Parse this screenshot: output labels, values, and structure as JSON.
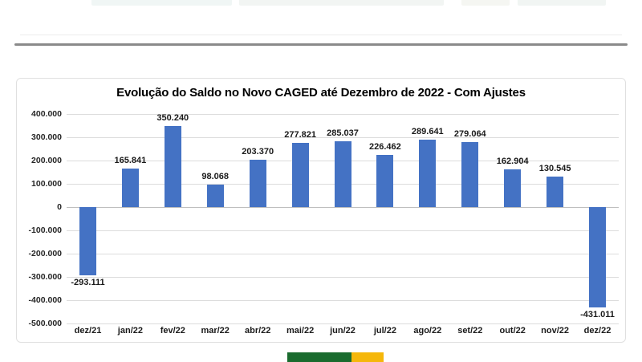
{
  "chart_data": {
    "type": "bar",
    "title": "Evolução do Saldo no Novo CAGED até Dezembro de 2022 - Com Ajustes",
    "categories": [
      "dez/21",
      "jan/22",
      "fev/22",
      "mar/22",
      "abr/22",
      "mai/22",
      "jun/22",
      "jul/22",
      "ago/22",
      "set/22",
      "out/22",
      "nov/22",
      "dez/22"
    ],
    "values": [
      -293111,
      165841,
      350240,
      98068,
      203370,
      277821,
      285037,
      226462,
      289641,
      279064,
      162904,
      130545,
      -431011
    ],
    "value_labels": [
      "-293.111",
      "165.841",
      "350.240",
      "98.068",
      "203.370",
      "277.821",
      "285.037",
      "226.462",
      "289.641",
      "279.064",
      "162.904",
      "130.545",
      "-431.011"
    ],
    "y_tick_labels": [
      "400.000",
      "300.000",
      "200.000",
      "100.000",
      "0",
      "-100.000",
      "-200.000",
      "-300.000",
      "-400.000",
      "-500.000"
    ],
    "y_tick_values": [
      400000,
      300000,
      200000,
      100000,
      0,
      -100000,
      -200000,
      -300000,
      -400000,
      -500000
    ],
    "ylim": [
      -500000,
      400000
    ],
    "grid": true,
    "legend": "none",
    "bar_color": "#4472C4",
    "xlabel": "",
    "ylabel": ""
  },
  "footer": {
    "flag_green": "#1a6b2e",
    "flag_yellow": "#f5b70a"
  }
}
